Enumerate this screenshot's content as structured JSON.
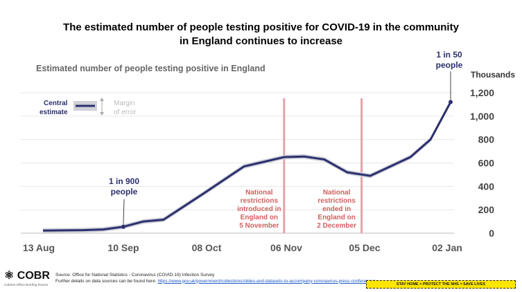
{
  "header": {
    "title_line1": "The estimated number of people testing positive for COVID-19 in the community",
    "title_line2": "in England continues to increase"
  },
  "chart_data": {
    "type": "line",
    "subtitle": "Estimated number of people testing positive in England",
    "units_label": "Thousands",
    "x_tick_labels": [
      "13 Aug",
      "10 Sep",
      "08 Oct",
      "06 Nov",
      "05 Dec",
      "02 Jan"
    ],
    "y_ticks": [
      0,
      200,
      400,
      600,
      800,
      1000,
      1200
    ],
    "y_tick_labels": [
      "0",
      "200",
      "400",
      "600",
      "800",
      "1,000",
      "1,200"
    ],
    "ylim": [
      0,
      1300
    ],
    "x_unit": "days since 13 Aug",
    "series": [
      {
        "name": "Central estimate",
        "points": [
          {
            "date": "13 Aug",
            "day": 0,
            "value": 22
          },
          {
            "date": "27 Aug",
            "day": 14,
            "value": 26
          },
          {
            "date": "03 Sep",
            "day": 21,
            "value": 32
          },
          {
            "date": "10 Sep",
            "day": 28,
            "value": 55
          },
          {
            "date": "17 Sep",
            "day": 35,
            "value": 100
          },
          {
            "date": "24 Sep",
            "day": 42,
            "value": 115
          },
          {
            "date": "08 Oct",
            "day": 56,
            "value": 340
          },
          {
            "date": "22 Oct",
            "day": 70,
            "value": 570
          },
          {
            "date": "05 Nov",
            "day": 84,
            "value": 650
          },
          {
            "date": "12 Nov",
            "day": 91,
            "value": 655
          },
          {
            "date": "19 Nov",
            "day": 98,
            "value": 630
          },
          {
            "date": "27 Nov",
            "day": 106,
            "value": 520
          },
          {
            "date": "05 Dec",
            "day": 114,
            "value": 490
          },
          {
            "date": "19 Dec",
            "day": 128,
            "value": 650
          },
          {
            "date": "26 Dec",
            "day": 135,
            "value": 800
          },
          {
            "date": "02 Jan",
            "day": 142,
            "value": 1120
          }
        ],
        "margin_of_error": 20
      }
    ],
    "legend": {
      "central": "Central estimate",
      "margin": "Margin of error"
    },
    "annotations": [
      {
        "label": "1 in 900 people",
        "date": "10 Sep",
        "value": 55
      },
      {
        "label": "1 in 50 people",
        "date": "02 Jan",
        "value": 1120
      }
    ],
    "events": [
      {
        "label": "National restrictions introduced in England on 5 November",
        "line1": "National",
        "line2": "restrictions",
        "line3": "introduced in",
        "line4": "England on",
        "line5": "5 November",
        "day": 84
      },
      {
        "label": "National restrictions ended in England on 2 December",
        "line1": "National",
        "line2": "restrictions",
        "line3": "ended in",
        "line4": "England on",
        "line5": "2 December",
        "day": 111
      }
    ],
    "colors": {
      "line": "#2b2f6e",
      "band": "#cfd0d8",
      "event": "#e8a0a8",
      "event_text": "#d0605f",
      "grid": "#e6e6e6"
    }
  },
  "footer": {
    "logo_text": "COBR",
    "logo_sub": "Cabinet Office Briefing Rooms",
    "source_line": "Source: Office for National Statistics - Coronavirus (COVID-19) Infection Survey",
    "details_line": "Further details on data sources can be found here:",
    "link_text": "https://www.gov.uk/government/collections/slides-and-datasets-to-accompany-coronavirus-press-conferences",
    "banner": "STAY HOME > PROTECT THE NHS > SAVE LIVES"
  }
}
